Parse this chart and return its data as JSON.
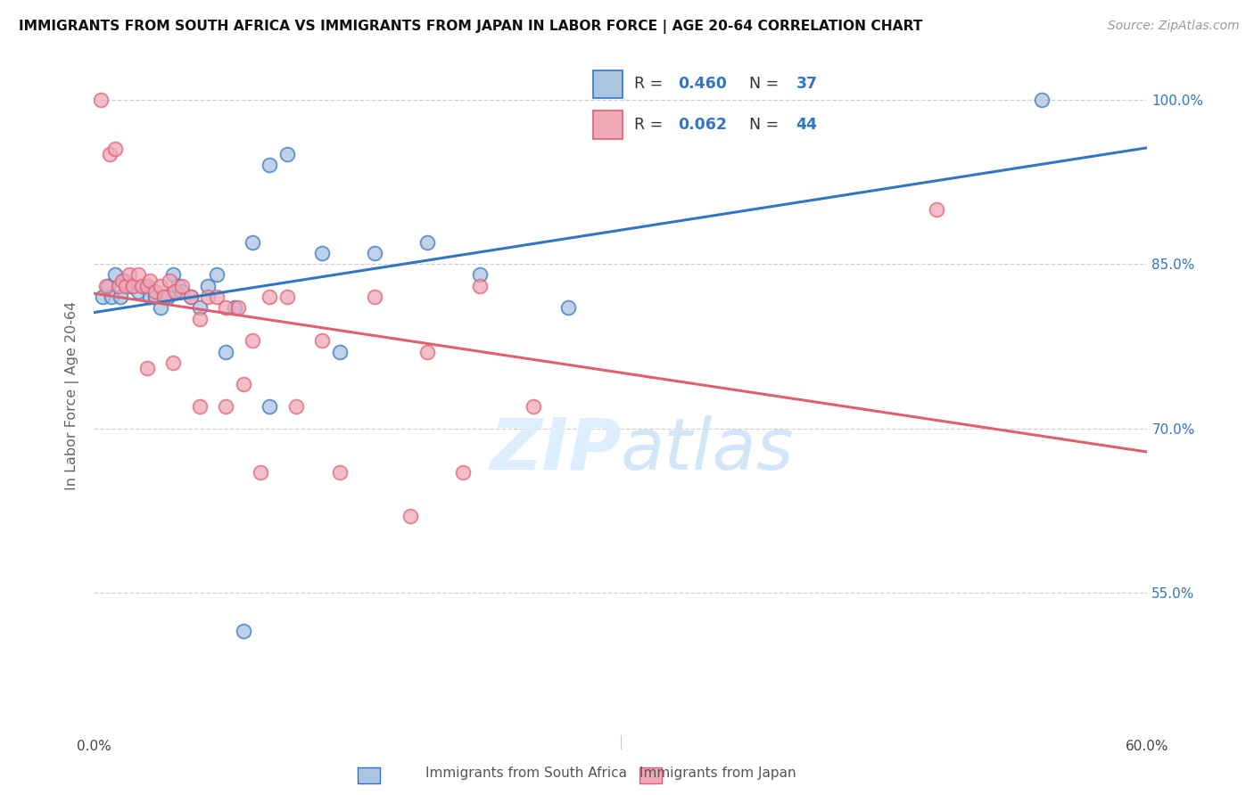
{
  "title": "IMMIGRANTS FROM SOUTH AFRICA VS IMMIGRANTS FROM JAPAN IN LABOR FORCE | AGE 20-64 CORRELATION CHART",
  "source": "Source: ZipAtlas.com",
  "ylabel": "In Labor Force | Age 20-64",
  "xlim": [
    0.0,
    0.6
  ],
  "ylim": [
    0.42,
    1.04
  ],
  "ytick_labels_right": [
    "100.0%",
    "85.0%",
    "70.0%",
    "55.0%"
  ],
  "ytick_vals_right": [
    1.0,
    0.85,
    0.7,
    0.55
  ],
  "blue_R": 0.46,
  "blue_N": 37,
  "pink_R": 0.062,
  "pink_N": 44,
  "blue_color": "#aac4e2",
  "pink_color": "#f0a8b8",
  "blue_line_color": "#3375c0",
  "pink_line_color": "#e06070",
  "background_color": "#ffffff",
  "grid_color": "#d0d0d0",
  "blue_scatter_x": [
    0.005,
    0.008,
    0.01,
    0.012,
    0.015,
    0.017,
    0.02,
    0.022,
    0.025,
    0.028,
    0.03,
    0.032,
    0.035,
    0.038,
    0.04,
    0.042,
    0.045,
    0.048,
    0.05,
    0.055,
    0.06,
    0.065,
    0.07,
    0.075,
    0.08,
    0.09,
    0.1,
    0.11,
    0.13,
    0.16,
    0.19,
    0.22,
    0.27,
    0.14,
    0.1,
    0.54,
    0.085
  ],
  "blue_scatter_y": [
    0.82,
    0.83,
    0.82,
    0.84,
    0.82,
    0.835,
    0.83,
    0.83,
    0.825,
    0.83,
    0.83,
    0.82,
    0.82,
    0.81,
    0.82,
    0.82,
    0.84,
    0.83,
    0.825,
    0.82,
    0.81,
    0.83,
    0.84,
    0.77,
    0.81,
    0.87,
    0.94,
    0.95,
    0.86,
    0.86,
    0.87,
    0.84,
    0.81,
    0.77,
    0.72,
    1.0,
    0.515
  ],
  "pink_scatter_x": [
    0.004,
    0.007,
    0.009,
    0.012,
    0.014,
    0.016,
    0.018,
    0.02,
    0.022,
    0.025,
    0.027,
    0.03,
    0.032,
    0.035,
    0.038,
    0.04,
    0.043,
    0.046,
    0.05,
    0.055,
    0.06,
    0.065,
    0.07,
    0.075,
    0.082,
    0.09,
    0.1,
    0.11,
    0.13,
    0.16,
    0.19,
    0.22,
    0.03,
    0.045,
    0.06,
    0.075,
    0.085,
    0.095,
    0.115,
    0.14,
    0.18,
    0.21,
    0.48,
    0.25
  ],
  "pink_scatter_y": [
    1.0,
    0.83,
    0.95,
    0.955,
    0.83,
    0.835,
    0.83,
    0.84,
    0.83,
    0.84,
    0.83,
    0.83,
    0.835,
    0.825,
    0.83,
    0.82,
    0.835,
    0.825,
    0.83,
    0.82,
    0.8,
    0.82,
    0.82,
    0.81,
    0.81,
    0.78,
    0.82,
    0.82,
    0.78,
    0.82,
    0.77,
    0.83,
    0.755,
    0.76,
    0.72,
    0.72,
    0.74,
    0.66,
    0.72,
    0.66,
    0.62,
    0.66,
    0.9,
    0.72
  ]
}
